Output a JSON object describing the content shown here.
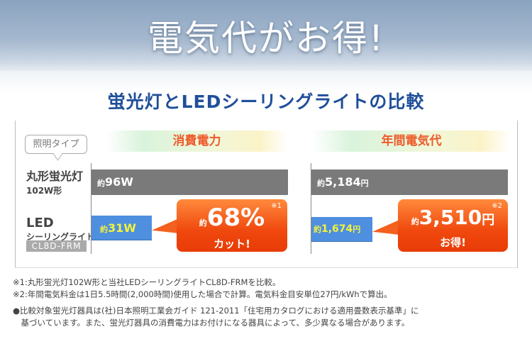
{
  "hero": {
    "title": "電気代がお得!"
  },
  "subtitle": "蛍光灯とLEDシーリングライトの比較",
  "type_label": "照明タイプ",
  "rows": {
    "fluorescent": {
      "name": "丸形蛍光灯",
      "spec": "102W形"
    },
    "led": {
      "name": "LED",
      "sub": "シーリングライト",
      "model": "CL8D-FRM"
    }
  },
  "power": {
    "header": "消費電力",
    "prefix": "約",
    "fluorescent": "96W",
    "led": "31W",
    "badge": {
      "prefix": "約",
      "value": "68%",
      "text": "カット!",
      "note": "※1"
    }
  },
  "cost": {
    "header": "年間電気代",
    "prefix": "約",
    "fluorescent": "5,184",
    "led": "1,674",
    "unit": "円",
    "badge": {
      "prefix": "約",
      "value": "3,510",
      "unit": "円",
      "text": "お得!",
      "note": "※2"
    }
  },
  "notes": [
    "※1:丸形蛍光灯102W形と当社LEDシーリングライトCL8D-FRMを比較。",
    "※2:年間電気料金は1日5.5時間(2,000時間)使用した場合で計算。電気料金目安単位27円/kWhで算出。",
    "●比較対象蛍光灯器具は(社)日本照明工業会ガイド 121-2011「住宅用カタログにおける適用畳数表示基準」に",
    "　基づいています。また、蛍光灯器具の消費電力はお付けになる器具によって、多少異なる場合があります。"
  ],
  "colors": {
    "accent": "#1f4f9a",
    "orange": "#f0480e",
    "led_bar": "#4e8fe0",
    "fluor_bar": "#7a7a7a"
  }
}
